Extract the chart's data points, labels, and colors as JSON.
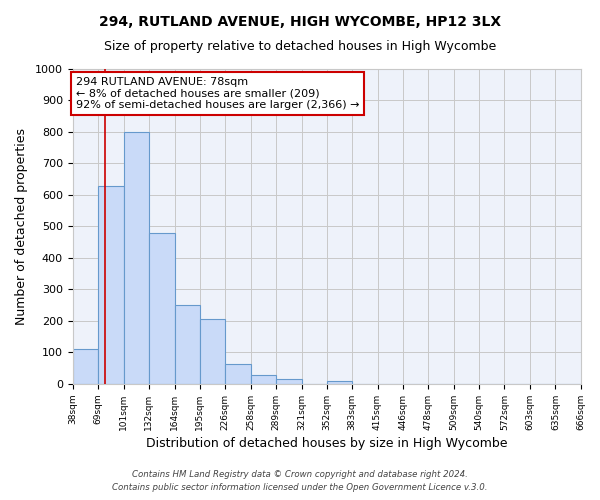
{
  "title": "294, RUTLAND AVENUE, HIGH WYCOMBE, HP12 3LX",
  "subtitle": "Size of property relative to detached houses in High Wycombe",
  "xlabel": "Distribution of detached houses by size in High Wycombe",
  "ylabel": "Number of detached properties",
  "bin_edges": [
    38,
    69,
    101,
    132,
    164,
    195,
    226,
    258,
    289,
    321,
    352,
    383,
    415,
    446,
    478,
    509,
    540,
    572,
    603,
    635,
    666
  ],
  "bar_heights": [
    110,
    630,
    800,
    480,
    250,
    207,
    62,
    28,
    15,
    0,
    10,
    0,
    0,
    0,
    0,
    0,
    0,
    0,
    0,
    0
  ],
  "bar_color": "#c9daf8",
  "bar_edge_color": "#6699cc",
  "tick_labels": [
    "38sqm",
    "69sqm",
    "101sqm",
    "132sqm",
    "164sqm",
    "195sqm",
    "226sqm",
    "258sqm",
    "289sqm",
    "321sqm",
    "352sqm",
    "383sqm",
    "415sqm",
    "446sqm",
    "478sqm",
    "509sqm",
    "540sqm",
    "572sqm",
    "603sqm",
    "635sqm",
    "666sqm"
  ],
  "ylim": [
    0,
    1000
  ],
  "yticks": [
    0,
    100,
    200,
    300,
    400,
    500,
    600,
    700,
    800,
    900,
    1000
  ],
  "property_line_x": 78,
  "annotation_title": "294 RUTLAND AVENUE: 78sqm",
  "annotation_line1": "← 8% of detached houses are smaller (209)",
  "annotation_line2": "92% of semi-detached houses are larger (2,366) →",
  "annotation_box_color": "#ffffff",
  "annotation_box_edge_color": "#cc0000",
  "property_line_color": "#cc0000",
  "grid_color": "#c8c8c8",
  "background_color": "#ffffff",
  "plot_bg_color": "#eef2fa",
  "footer1": "Contains HM Land Registry data © Crown copyright and database right 2024.",
  "footer2": "Contains public sector information licensed under the Open Government Licence v.3.0."
}
